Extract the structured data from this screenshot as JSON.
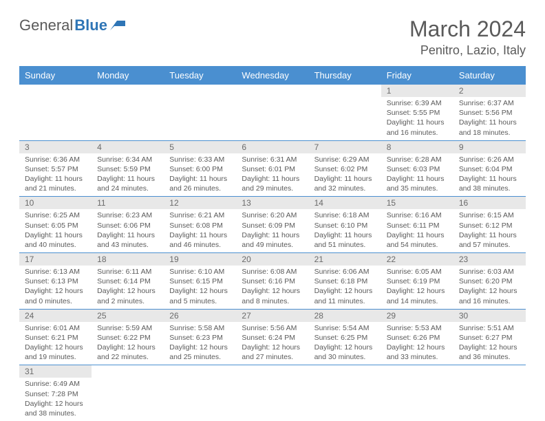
{
  "logo": {
    "text1": "General",
    "text2": "Blue"
  },
  "title": "March 2024",
  "location": "Penitro, Lazio, Italy",
  "colors": {
    "header_bg": "#4a8fd0",
    "header_text": "#ffffff",
    "daynum_bg": "#e8e8e8",
    "text": "#5a5a5a",
    "accent": "#2e75b6"
  },
  "day_headers": [
    "Sunday",
    "Monday",
    "Tuesday",
    "Wednesday",
    "Thursday",
    "Friday",
    "Saturday"
  ],
  "weeks": [
    [
      null,
      null,
      null,
      null,
      null,
      {
        "n": "1",
        "sr": "6:39 AM",
        "ss": "5:55 PM",
        "dl": "11 hours and 16 minutes."
      },
      {
        "n": "2",
        "sr": "6:37 AM",
        "ss": "5:56 PM",
        "dl": "11 hours and 18 minutes."
      }
    ],
    [
      {
        "n": "3",
        "sr": "6:36 AM",
        "ss": "5:57 PM",
        "dl": "11 hours and 21 minutes."
      },
      {
        "n": "4",
        "sr": "6:34 AM",
        "ss": "5:59 PM",
        "dl": "11 hours and 24 minutes."
      },
      {
        "n": "5",
        "sr": "6:33 AM",
        "ss": "6:00 PM",
        "dl": "11 hours and 26 minutes."
      },
      {
        "n": "6",
        "sr": "6:31 AM",
        "ss": "6:01 PM",
        "dl": "11 hours and 29 minutes."
      },
      {
        "n": "7",
        "sr": "6:29 AM",
        "ss": "6:02 PM",
        "dl": "11 hours and 32 minutes."
      },
      {
        "n": "8",
        "sr": "6:28 AM",
        "ss": "6:03 PM",
        "dl": "11 hours and 35 minutes."
      },
      {
        "n": "9",
        "sr": "6:26 AM",
        "ss": "6:04 PM",
        "dl": "11 hours and 38 minutes."
      }
    ],
    [
      {
        "n": "10",
        "sr": "6:25 AM",
        "ss": "6:05 PM",
        "dl": "11 hours and 40 minutes."
      },
      {
        "n": "11",
        "sr": "6:23 AM",
        "ss": "6:06 PM",
        "dl": "11 hours and 43 minutes."
      },
      {
        "n": "12",
        "sr": "6:21 AM",
        "ss": "6:08 PM",
        "dl": "11 hours and 46 minutes."
      },
      {
        "n": "13",
        "sr": "6:20 AM",
        "ss": "6:09 PM",
        "dl": "11 hours and 49 minutes."
      },
      {
        "n": "14",
        "sr": "6:18 AM",
        "ss": "6:10 PM",
        "dl": "11 hours and 51 minutes."
      },
      {
        "n": "15",
        "sr": "6:16 AM",
        "ss": "6:11 PM",
        "dl": "11 hours and 54 minutes."
      },
      {
        "n": "16",
        "sr": "6:15 AM",
        "ss": "6:12 PM",
        "dl": "11 hours and 57 minutes."
      }
    ],
    [
      {
        "n": "17",
        "sr": "6:13 AM",
        "ss": "6:13 PM",
        "dl": "12 hours and 0 minutes."
      },
      {
        "n": "18",
        "sr": "6:11 AM",
        "ss": "6:14 PM",
        "dl": "12 hours and 2 minutes."
      },
      {
        "n": "19",
        "sr": "6:10 AM",
        "ss": "6:15 PM",
        "dl": "12 hours and 5 minutes."
      },
      {
        "n": "20",
        "sr": "6:08 AM",
        "ss": "6:16 PM",
        "dl": "12 hours and 8 minutes."
      },
      {
        "n": "21",
        "sr": "6:06 AM",
        "ss": "6:18 PM",
        "dl": "12 hours and 11 minutes."
      },
      {
        "n": "22",
        "sr": "6:05 AM",
        "ss": "6:19 PM",
        "dl": "12 hours and 14 minutes."
      },
      {
        "n": "23",
        "sr": "6:03 AM",
        "ss": "6:20 PM",
        "dl": "12 hours and 16 minutes."
      }
    ],
    [
      {
        "n": "24",
        "sr": "6:01 AM",
        "ss": "6:21 PM",
        "dl": "12 hours and 19 minutes."
      },
      {
        "n": "25",
        "sr": "5:59 AM",
        "ss": "6:22 PM",
        "dl": "12 hours and 22 minutes."
      },
      {
        "n": "26",
        "sr": "5:58 AM",
        "ss": "6:23 PM",
        "dl": "12 hours and 25 minutes."
      },
      {
        "n": "27",
        "sr": "5:56 AM",
        "ss": "6:24 PM",
        "dl": "12 hours and 27 minutes."
      },
      {
        "n": "28",
        "sr": "5:54 AM",
        "ss": "6:25 PM",
        "dl": "12 hours and 30 minutes."
      },
      {
        "n": "29",
        "sr": "5:53 AM",
        "ss": "6:26 PM",
        "dl": "12 hours and 33 minutes."
      },
      {
        "n": "30",
        "sr": "5:51 AM",
        "ss": "6:27 PM",
        "dl": "12 hours and 36 minutes."
      }
    ],
    [
      {
        "n": "31",
        "sr": "6:49 AM",
        "ss": "7:28 PM",
        "dl": "12 hours and 38 minutes."
      },
      null,
      null,
      null,
      null,
      null,
      null
    ]
  ],
  "labels": {
    "sunrise": "Sunrise:",
    "sunset": "Sunset:",
    "daylight": "Daylight:"
  }
}
